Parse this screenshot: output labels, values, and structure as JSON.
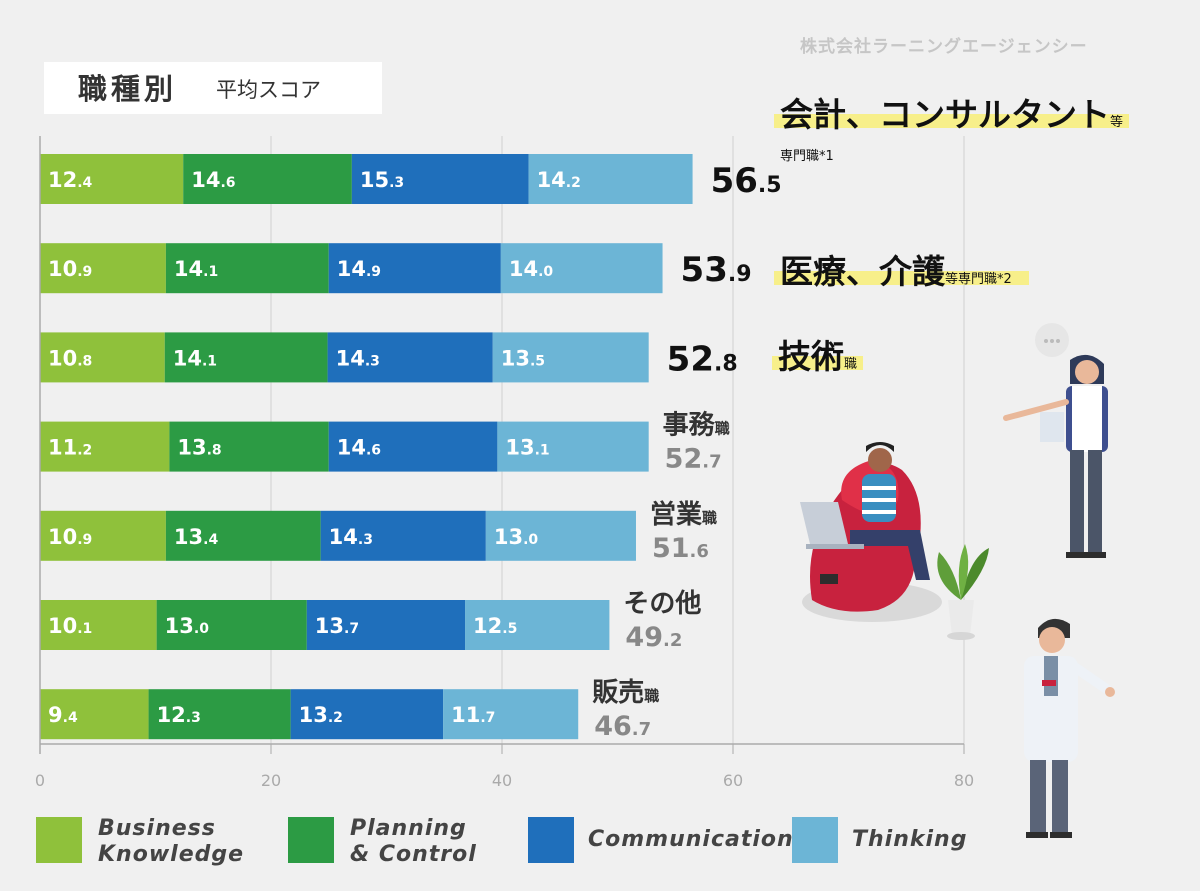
{
  "chart_data": {
    "type": "bar",
    "orientation": "horizontal",
    "stacked": true,
    "title": "職種別",
    "subtitle": "平均スコア",
    "credit": "株式会社ラーニングエージェンシー",
    "xlim": [
      0,
      80
    ],
    "x_ticks": [
      0,
      20,
      40,
      60,
      80
    ],
    "grid": true,
    "legend_position": "bottom",
    "series": [
      {
        "name": "Business Knowledge",
        "color": "#8fc13b",
        "values": [
          12.4,
          10.9,
          10.8,
          11.2,
          10.9,
          10.1,
          9.4
        ]
      },
      {
        "name": "Planning & Control",
        "color": "#2c9b44",
        "values": [
          14.6,
          14.1,
          14.1,
          13.8,
          13.4,
          13.0,
          12.3
        ]
      },
      {
        "name": "Communication",
        "color": "#1f6fbb",
        "values": [
          15.3,
          14.9,
          14.3,
          14.6,
          14.3,
          13.7,
          13.2
        ]
      },
      {
        "name": "Thinking",
        "color": "#6cb5d6",
        "values": [
          14.2,
          14.0,
          13.5,
          13.1,
          13.0,
          12.5,
          11.7
        ]
      }
    ],
    "categories": [
      {
        "label": "会計、コンサルタント",
        "suffix": "等",
        "note": "専門職*1",
        "total": "56.5",
        "highlight": true
      },
      {
        "label": "医療、介護",
        "suffix": "等専門職*2",
        "total": "53.9",
        "highlight": true
      },
      {
        "label": "技術",
        "suffix": "職",
        "total": "52.8",
        "highlight": true
      },
      {
        "label": "事務",
        "suffix": "職",
        "total": "52.7",
        "highlight": false
      },
      {
        "label": "営業",
        "suffix": "職",
        "total": "51.6",
        "highlight": false
      },
      {
        "label": "その他",
        "suffix": "",
        "total": "49.2",
        "highlight": false
      },
      {
        "label": "販売",
        "suffix": "職",
        "total": "46.7",
        "highlight": false
      }
    ],
    "legend": [
      {
        "lines": [
          "Business",
          "Knowledge"
        ]
      },
      {
        "lines": [
          "Planning",
          "& Control"
        ]
      },
      {
        "lines": [
          "Communication"
        ]
      },
      {
        "lines": [
          "Thinking"
        ]
      }
    ]
  }
}
